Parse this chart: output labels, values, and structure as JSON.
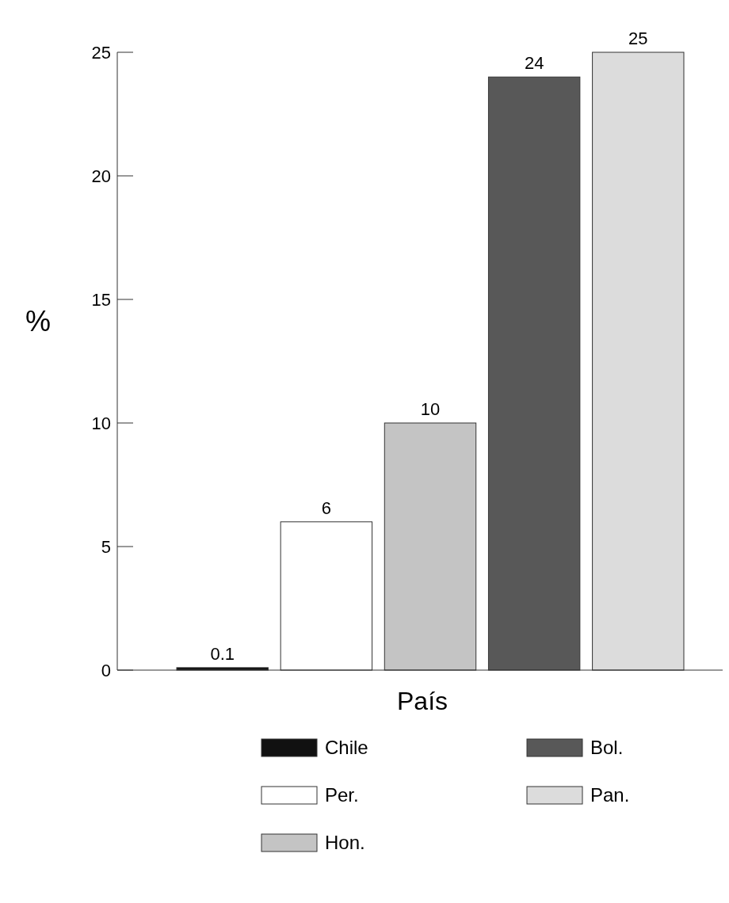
{
  "chart_data": {
    "type": "bar",
    "xlabel": "País",
    "ylabel": "%",
    "categories": [
      null,
      null,
      null,
      null,
      null
    ],
    "series": [
      {
        "name": "Chile",
        "color": "#111111",
        "values": [
          0.1,
          null,
          null,
          null,
          null
        ]
      },
      {
        "name": "Per.",
        "color": "#ffffff",
        "values": [
          null,
          6,
          null,
          null,
          null
        ]
      },
      {
        "name": "Hon.",
        "color": "#c4c4c4",
        "values": [
          null,
          null,
          10,
          null,
          null
        ]
      },
      {
        "name": "Bol.",
        "color": "#585858",
        "values": [
          null,
          null,
          null,
          24,
          null
        ]
      },
      {
        "name": "Pan.",
        "color": "#dcdcdc",
        "values": [
          null,
          null,
          null,
          null,
          25
        ]
      }
    ],
    "ylim": [
      0,
      25
    ],
    "yticks": [
      0,
      5,
      10,
      15,
      20,
      25
    ],
    "data_labels": true,
    "legend": "bottom"
  }
}
